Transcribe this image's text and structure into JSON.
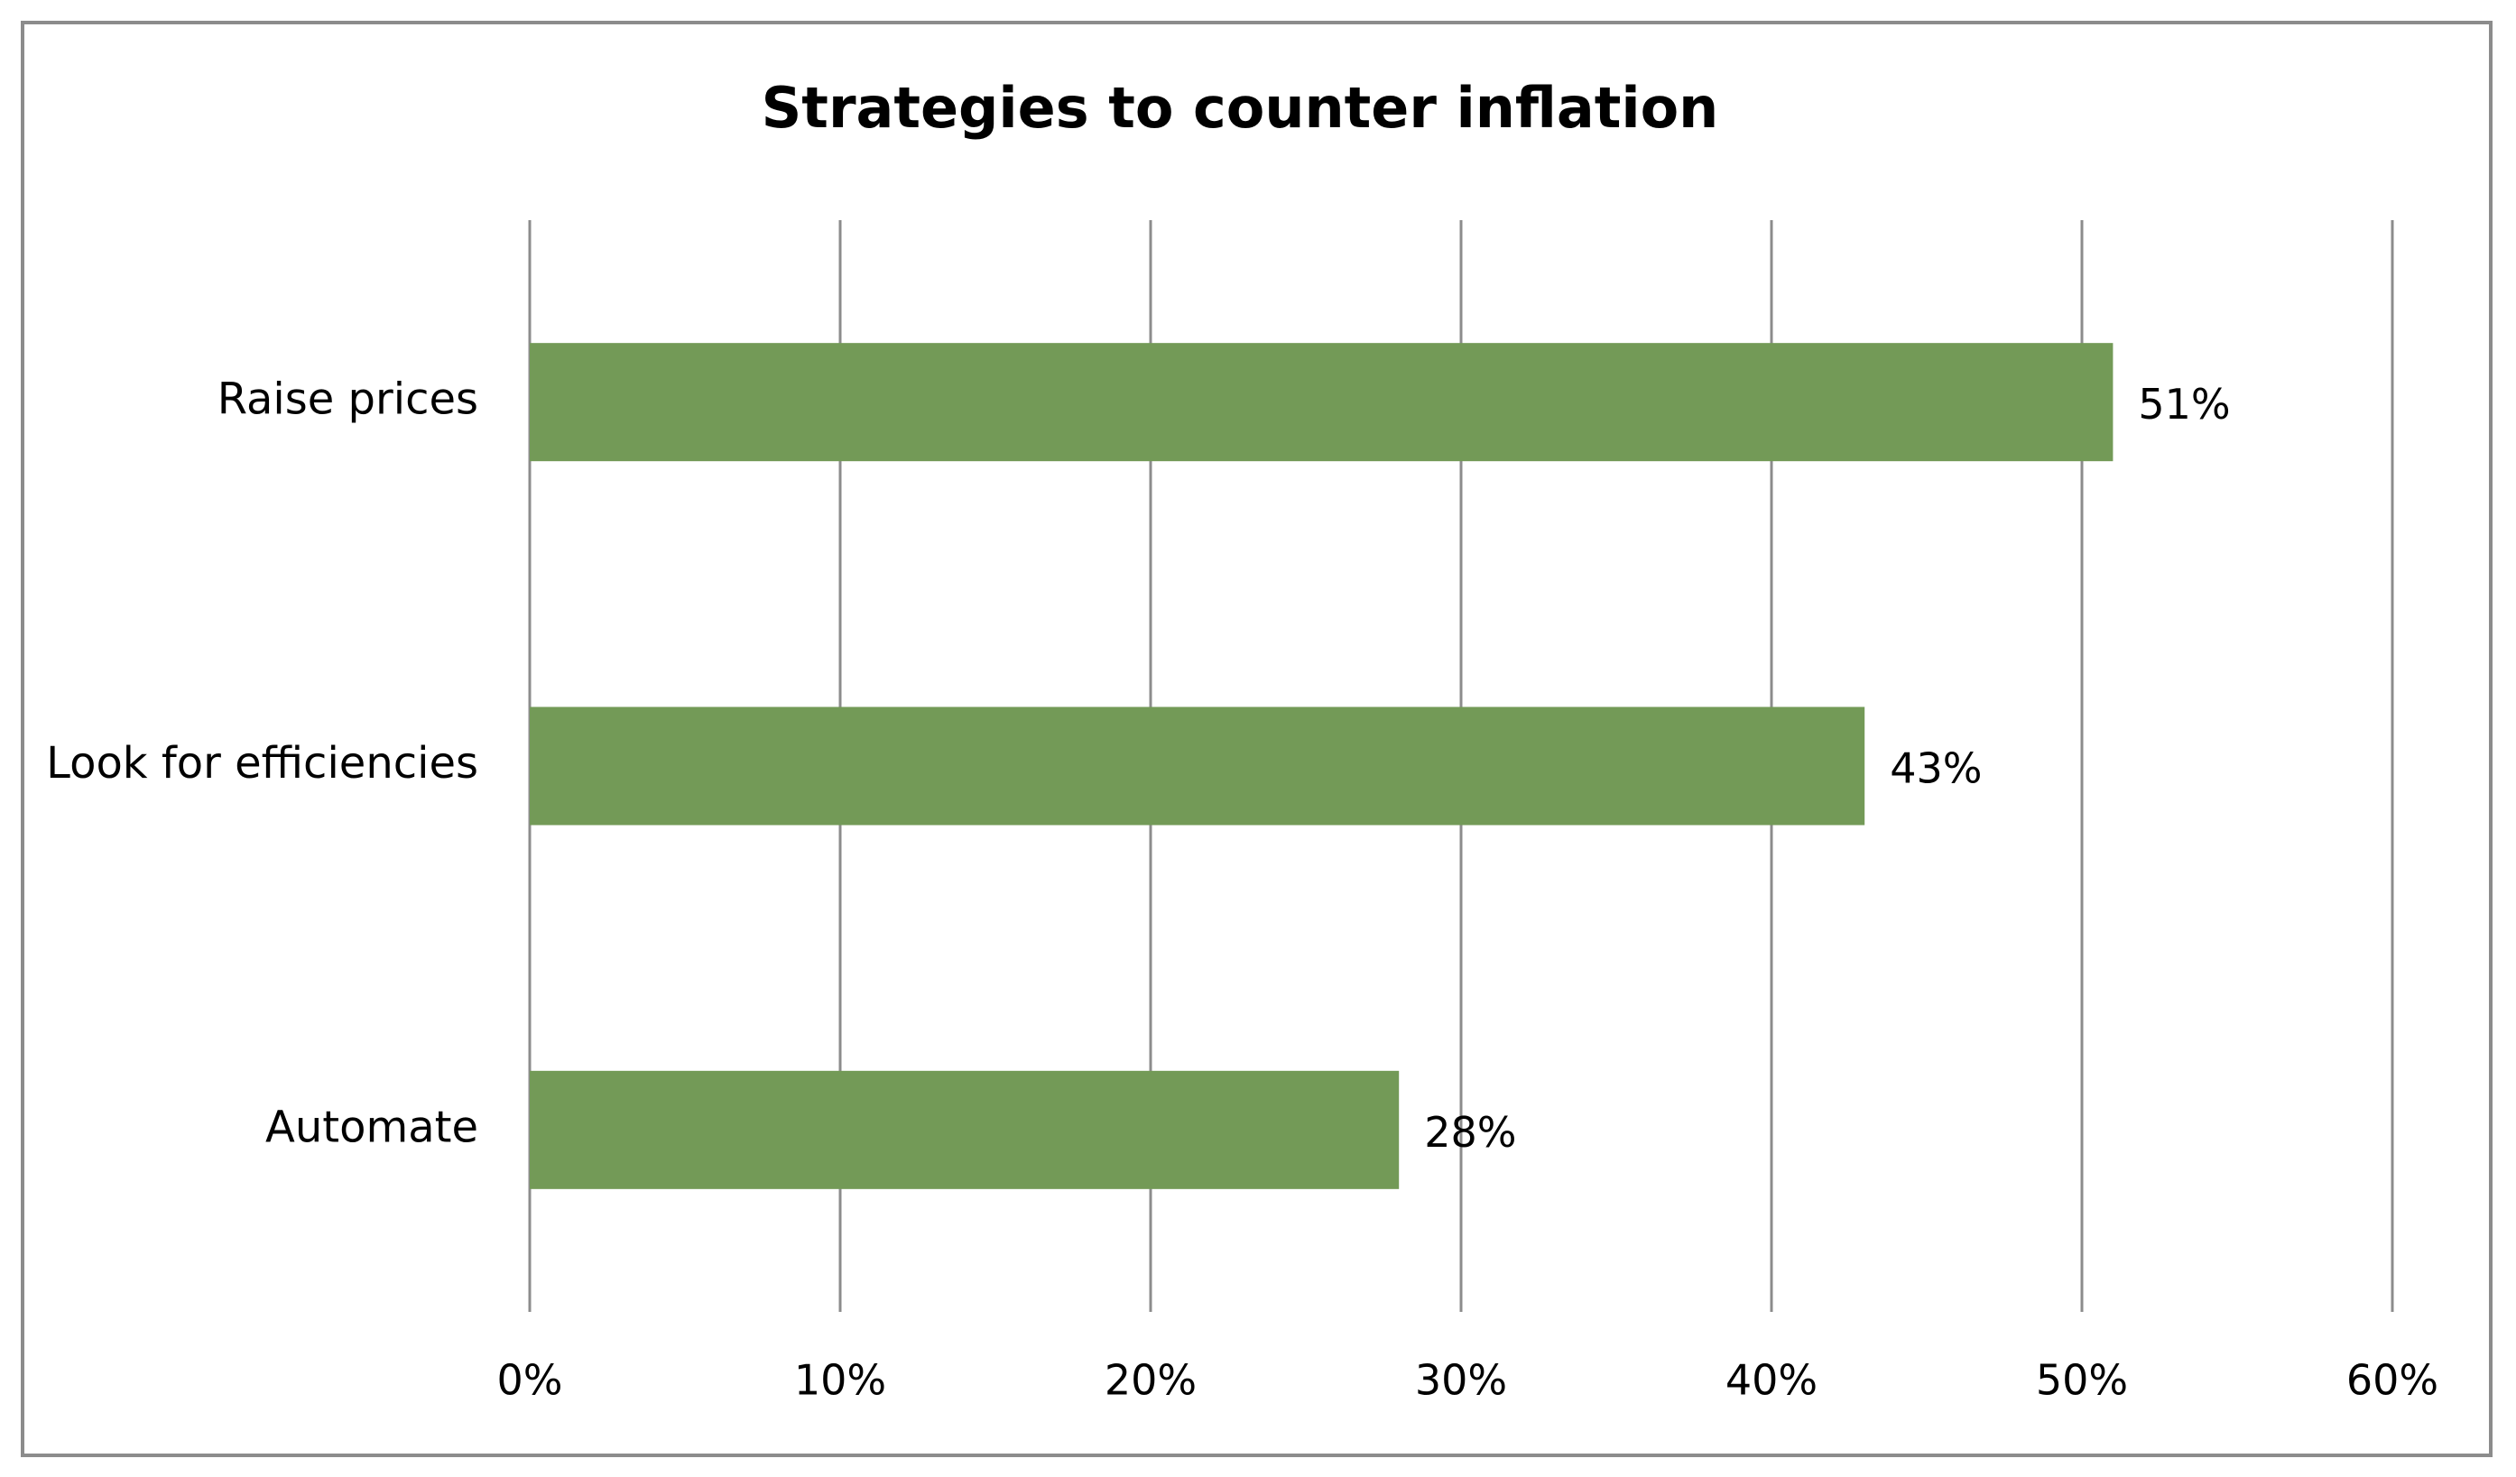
{
  "chart_data": {
    "type": "bar",
    "orientation": "horizontal",
    "title": "Strategies to counter inflation",
    "categories": [
      "Raise prices",
      "Look for efficiencies",
      "Automate"
    ],
    "values": [
      51,
      43,
      28
    ],
    "value_labels": [
      "51%",
      "43%",
      "28%"
    ],
    "color": "#739a57",
    "xlim": [
      0,
      60
    ],
    "xticks": [
      {
        "value": 0,
        "label": "0%"
      },
      {
        "value": 10,
        "label": "10%"
      },
      {
        "value": 20,
        "label": "20%"
      },
      {
        "value": 30,
        "label": "30%"
      },
      {
        "value": 40,
        "label": "40%"
      },
      {
        "value": 50,
        "label": "50%"
      },
      {
        "value": 60,
        "label": "60%"
      }
    ],
    "grid": true
  }
}
